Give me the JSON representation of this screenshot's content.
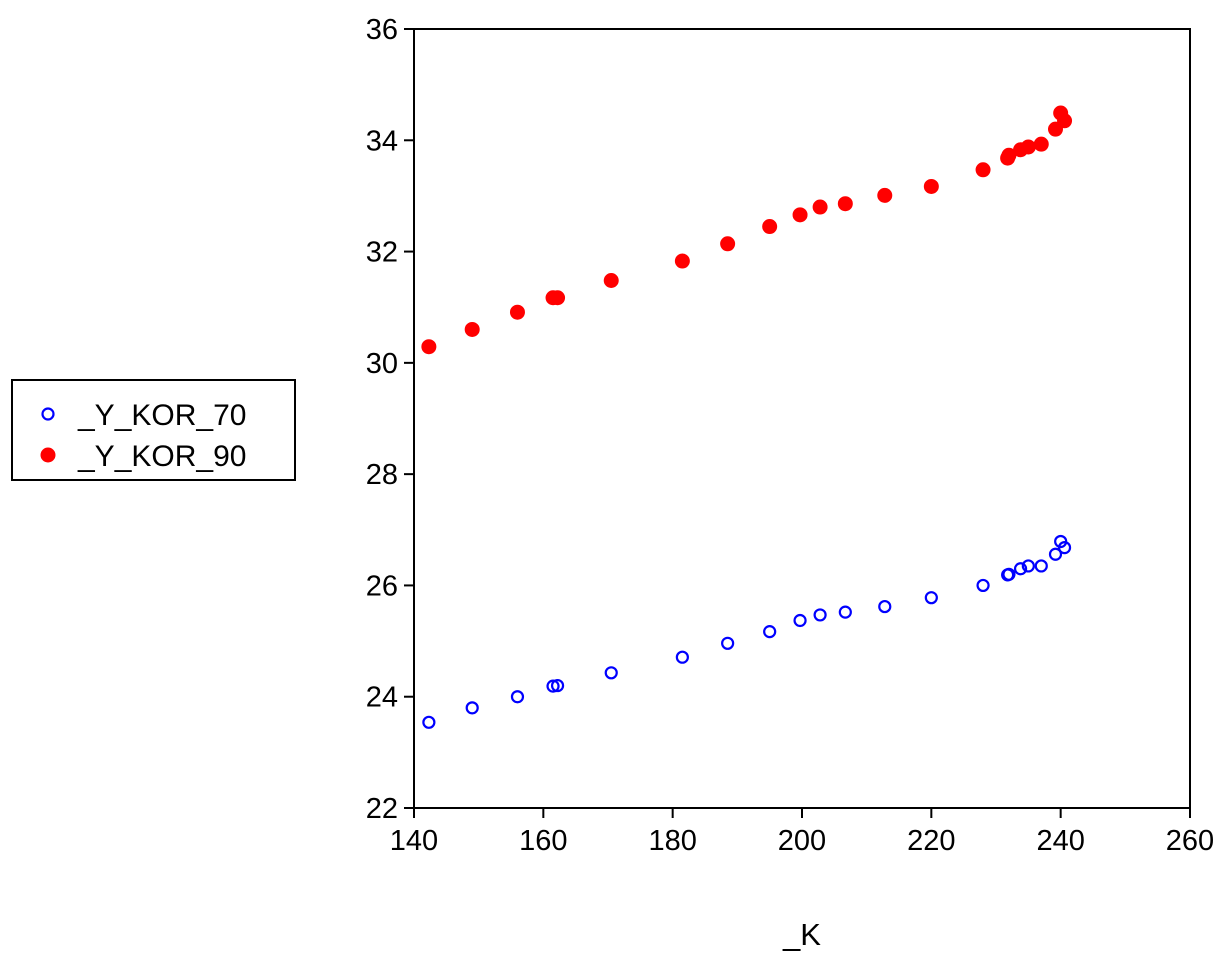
{
  "chart_data": {
    "type": "scatter",
    "title": "",
    "xlabel": "_K",
    "ylabel": "",
    "xlim": [
      140,
      260
    ],
    "ylim": [
      22,
      36
    ],
    "xticks": [
      140,
      160,
      180,
      200,
      220,
      240,
      260
    ],
    "yticks": [
      22,
      24,
      26,
      28,
      30,
      32,
      34,
      36
    ],
    "grid": false,
    "legend_position": "left",
    "x": [
      142.3,
      149.0,
      156.0,
      161.5,
      162.2,
      170.5,
      181.5,
      188.5,
      195.0,
      199.7,
      202.8,
      206.7,
      212.8,
      220.0,
      228.0,
      231.8,
      232.0,
      233.8,
      235.0,
      237.0,
      239.2,
      240.0,
      240.6
    ],
    "series": [
      {
        "name": "_Y_KOR_70",
        "marker": "open-circle",
        "color": "#0000ff",
        "values": [
          23.54,
          23.8,
          24.0,
          24.19,
          24.2,
          24.43,
          24.71,
          24.96,
          25.17,
          25.37,
          25.47,
          25.52,
          25.62,
          25.78,
          26.0,
          26.19,
          26.2,
          26.3,
          26.35,
          26.35,
          26.56,
          26.79,
          26.68
        ]
      },
      {
        "name": "_Y_KOR_90",
        "marker": "filled-circle",
        "color": "#ff0000",
        "values": [
          30.29,
          30.6,
          30.91,
          31.17,
          31.17,
          31.48,
          31.83,
          32.14,
          32.45,
          32.66,
          32.8,
          32.86,
          33.01,
          33.17,
          33.47,
          33.68,
          33.73,
          33.83,
          33.88,
          33.93,
          34.2,
          34.49,
          34.35
        ]
      }
    ]
  }
}
